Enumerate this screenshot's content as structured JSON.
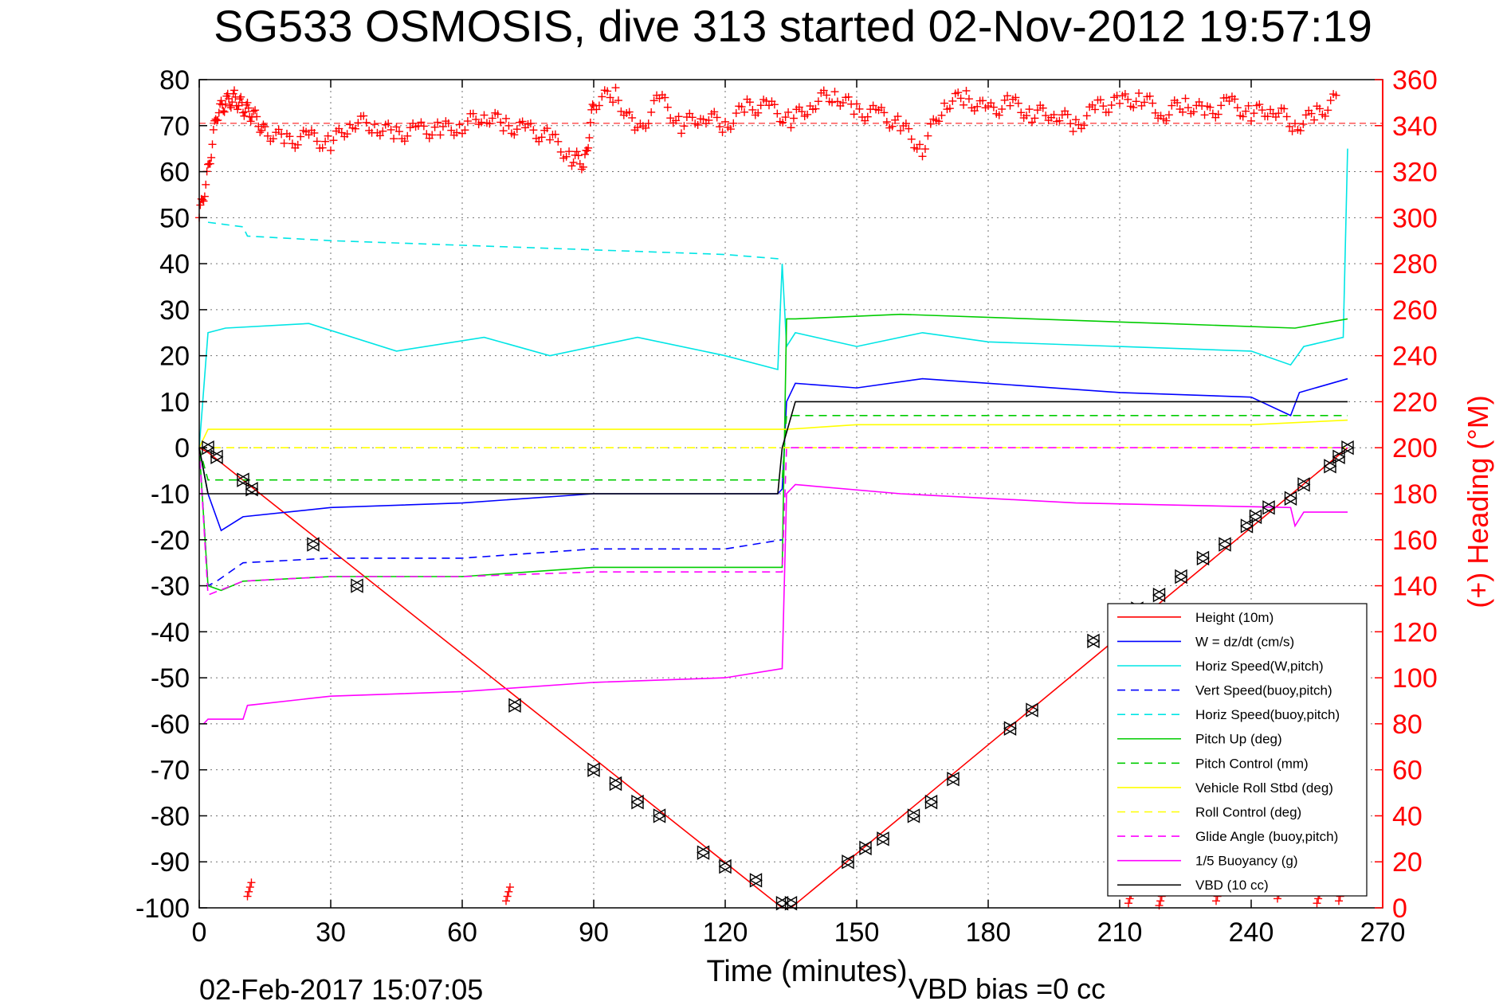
{
  "chart_data": {
    "type": "line",
    "title": "SG533 OSMOSIS, dive 313 started 02-Nov-2012 19:57:19",
    "xlabel": "Time (minutes)",
    "ylabel_right": "(+) Heading (°M)",
    "xlim": [
      0,
      270
    ],
    "ylim_left": [
      -100,
      80
    ],
    "ylim_right": [
      0,
      360
    ],
    "xticks": [
      "0",
      "30",
      "60",
      "90",
      "120",
      "150",
      "180",
      "210",
      "240",
      "270"
    ],
    "yticks_left": [
      "80",
      "70",
      "60",
      "50",
      "40",
      "30",
      "20",
      "10",
      "0",
      "-10",
      "-20",
      "-30",
      "-40",
      "-50",
      "-60",
      "-70",
      "-80",
      "-90",
      "-100"
    ],
    "yticks_right": [
      "360",
      "340",
      "320",
      "300",
      "280",
      "260",
      "240",
      "220",
      "200",
      "180",
      "160",
      "140",
      "120",
      "100",
      "80",
      "60",
      "40",
      "20",
      "0"
    ],
    "grid": true,
    "legend_position": "bottom-right",
    "footer_left": "02-Feb-2017 15:07:05",
    "footer_right": "VBD bias =0 cc",
    "series": [
      {
        "name": "Height (10m)",
        "color": "#ff0000",
        "style": "solid",
        "x": [
          0,
          2,
          133,
          134,
          135,
          262
        ],
        "y": [
          0,
          -1,
          -100,
          -100,
          -100,
          0
        ]
      },
      {
        "name": "W = dz/dt (cm/s)",
        "color": "#0000ff",
        "style": "solid",
        "x": [
          0,
          2,
          5,
          10,
          30,
          60,
          90,
          120,
          132,
          133,
          134,
          136,
          150,
          165,
          180,
          210,
          240,
          249,
          251,
          262
        ],
        "y": [
          0,
          -10,
          -18,
          -15,
          -13,
          -12,
          -10,
          -10,
          -10,
          -9,
          10,
          14,
          13,
          15,
          14,
          12,
          11,
          7,
          12,
          15
        ]
      },
      {
        "name": "Horiz Speed(W,pitch)",
        "color": "#00e5e5",
        "style": "solid",
        "x": [
          0,
          2,
          6,
          25,
          45,
          65,
          80,
          100,
          120,
          132,
          133,
          134,
          136,
          150,
          165,
          180,
          210,
          240,
          249,
          252,
          261,
          262
        ],
        "y": [
          0,
          25,
          26,
          27,
          21,
          24,
          20,
          24,
          20,
          17,
          40,
          22,
          25,
          22,
          25,
          23,
          22,
          21,
          18,
          22,
          24,
          65
        ]
      },
      {
        "name": "Vert Speed(buoy,pitch)",
        "color": "#0000ff",
        "style": "dashed",
        "x": [
          0,
          2,
          4,
          10,
          30,
          60,
          90,
          120,
          133
        ],
        "y": [
          0,
          -30,
          -29,
          -25,
          -24,
          -24,
          -22,
          -22,
          -20
        ]
      },
      {
        "name": "Horiz Speed(buoy,pitch)",
        "color": "#00e5e5",
        "style": "dashed",
        "x": [
          2,
          10,
          11,
          30,
          60,
          90,
          120,
          133
        ],
        "y": [
          49,
          48,
          46,
          45,
          44,
          43,
          42,
          41
        ]
      },
      {
        "name": "Pitch Up (deg)",
        "color": "#00cc00",
        "style": "solid",
        "x": [
          0,
          2,
          5,
          10,
          30,
          60,
          90,
          120,
          132,
          133,
          134,
          136,
          160,
          190,
          220,
          250,
          262
        ],
        "y": [
          0,
          -30,
          -31,
          -29,
          -28,
          -28,
          -26,
          -26,
          -26,
          -26,
          28,
          28,
          29,
          28,
          27,
          26,
          28
        ]
      },
      {
        "name": "Pitch Control (mm)",
        "color": "#00cc00",
        "style": "dashed",
        "x": [
          0,
          2,
          133,
          134,
          262
        ],
        "y": [
          0,
          -7,
          -7,
          7,
          7
        ]
      },
      {
        "name": "Vehicle Roll Stbd (deg)",
        "color": "#ffff00",
        "style": "solid",
        "x": [
          0,
          2,
          30,
          60,
          90,
          120,
          133,
          134,
          150,
          180,
          210,
          240,
          262
        ],
        "y": [
          0,
          4,
          4,
          4,
          4,
          4,
          4,
          4,
          5,
          5,
          5,
          5,
          6
        ]
      },
      {
        "name": "Roll Control (deg)",
        "color": "#ffff00",
        "style": "dashed",
        "x": [
          0,
          262
        ],
        "y": [
          0,
          0
        ]
      },
      {
        "name": "Glide Angle (buoy,pitch)",
        "color": "#ff00ff",
        "style": "dashed",
        "x": [
          0,
          2,
          10,
          30,
          60,
          90,
          120,
          133,
          134,
          262
        ],
        "y": [
          0,
          -32,
          -29,
          -28,
          -28,
          -27,
          -27,
          -27,
          0,
          0
        ]
      },
      {
        "name": "1/5 Buoyancy (g)",
        "color": "#ff00ff",
        "style": "solid",
        "x": [
          1,
          2,
          10,
          11,
          30,
          60,
          90,
          120,
          133,
          134,
          136,
          160,
          200,
          249,
          250,
          252,
          262
        ],
        "y": [
          -60,
          -59,
          -59,
          -56,
          -54,
          -53,
          -51,
          -50,
          -48,
          -10,
          -8,
          -10,
          -12,
          -13,
          -17,
          -14,
          -14
        ]
      },
      {
        "name": "VBD (10 cc)",
        "color": "#000000",
        "style": "solid",
        "x": [
          0,
          2,
          132,
          133,
          136,
          262
        ],
        "y": [
          0,
          -10,
          -10,
          0,
          10,
          10
        ]
      }
    ],
    "heading": {
      "name": "(+) Heading (°M)",
      "color": "#ff0000",
      "marker": "+",
      "axis": "right",
      "mean": 341,
      "x": [
        0,
        2,
        4,
        6,
        8,
        10,
        12,
        15,
        20,
        25,
        30,
        35,
        40,
        45,
        50,
        55,
        60,
        65,
        70,
        75,
        80,
        85,
        88,
        90,
        95,
        100,
        105,
        110,
        115,
        120,
        125,
        130,
        135,
        140,
        145,
        150,
        155,
        160,
        165,
        170,
        175,
        180,
        185,
        190,
        195,
        200,
        205,
        210,
        215,
        220,
        225,
        230,
        235,
        240,
        245,
        250,
        255,
        260
      ],
      "y": [
        300,
        320,
        345,
        350,
        352,
        348,
        345,
        338,
        333,
        335,
        332,
        342,
        340,
        336,
        338,
        338,
        340,
        345,
        340,
        338,
        335,
        326,
        324,
        350,
        354,
        336,
        352,
        340,
        345,
        340,
        348,
        348,
        342,
        350,
        354,
        346,
        345,
        340,
        330,
        350,
        352,
        346,
        350,
        345,
        346,
        340,
        348,
        350,
        352,
        345,
        350,
        345,
        350,
        345,
        348,
        340,
        345,
        352
      ],
      "low_cluster": [
        {
          "x": 11,
          "y": 5
        },
        {
          "x": 70,
          "y": 3
        },
        {
          "x": 212,
          "y": 2
        },
        {
          "x": 219,
          "y": 1
        },
        {
          "x": 232,
          "y": 3
        },
        {
          "x": 246,
          "y": 4
        },
        {
          "x": 255,
          "y": 2
        },
        {
          "x": 260,
          "y": 3
        }
      ]
    },
    "markers": {
      "color": "#000000",
      "shape": "triangle",
      "x": [
        2,
        4,
        10,
        12,
        26,
        36,
        72,
        90,
        95,
        100,
        105,
        115,
        120,
        127,
        133,
        135,
        148,
        152,
        156,
        163,
        167,
        172,
        185,
        190,
        204,
        214,
        219,
        224,
        229,
        234,
        239,
        241,
        244,
        249,
        252,
        258,
        260,
        262
      ],
      "y": [
        0,
        -2,
        -7,
        -9,
        -21,
        -30,
        -56,
        -70,
        -73,
        -77,
        -80,
        -88,
        -91,
        -94,
        -99,
        -99,
        -90,
        -87,
        -85,
        -80,
        -77,
        -72,
        -61,
        -57,
        -42,
        -35,
        -32,
        -28,
        -24,
        -21,
        -17,
        -15,
        -13,
        -11,
        -8,
        -4,
        -2,
        0
      ]
    }
  }
}
